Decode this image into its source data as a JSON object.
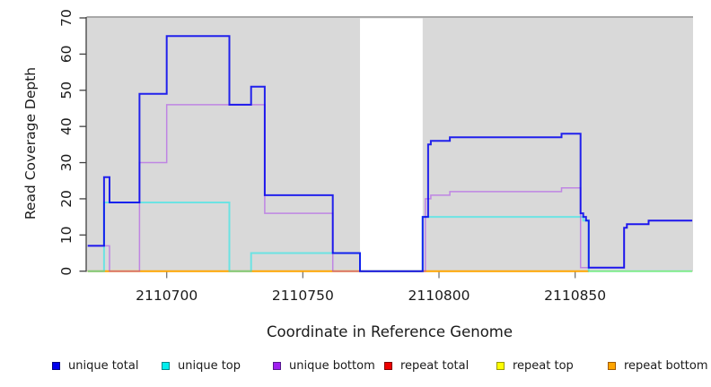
{
  "figure": {
    "background": "#FFFFFF",
    "panel_background": "#D9D9D9",
    "panel_top_border_color": "#A8A8A8",
    "axis_color": "#404040",
    "tick_color": "#757575",
    "text_color": "#1a1a1a",
    "no_data_band_color": "#FFFFFF"
  },
  "chart_data": {
    "type": "line",
    "subtype": "step-coverage-plot",
    "title": "",
    "xlabel": "Coordinate in Reference Genome",
    "ylabel": "Read Coverage Depth",
    "xlim": [
      2110671,
      2110893
    ],
    "ylim": [
      0,
      70
    ],
    "xticks": [
      2110700,
      2110750,
      2110800,
      2110850
    ],
    "yticks": [
      0,
      10,
      20,
      30,
      40,
      50,
      60,
      70
    ],
    "grid": false,
    "legend_position": "bottom",
    "no_data_region": {
      "x_start": 2110771,
      "x_end": 2110794
    },
    "step_format": "each step is [x_start, value]; value holds until next step's x_start; series ends at x_end",
    "series": [
      {
        "name": "repeat total",
        "color": "rgba(238,0,0,0.9)",
        "width": 1.5,
        "steps": [
          [
            2110671,
            0
          ]
        ],
        "x_end": 2110893
      },
      {
        "name": "repeat top",
        "color": "rgba(255,255,0,0.9)",
        "width": 1.5,
        "steps": [
          [
            2110671,
            0
          ]
        ],
        "x_end": 2110893
      },
      {
        "name": "repeat bottom",
        "color": "rgba(255,165,0,1)",
        "width": 2,
        "steps": [
          [
            2110671,
            0
          ]
        ],
        "x_end": 2110855
      },
      {
        "name": "unique top",
        "color": "rgba(0,238,238,0.5)",
        "width": 2,
        "steps": [
          [
            2110671,
            0
          ],
          [
            2110677,
            19
          ],
          [
            2110723,
            0
          ],
          [
            2110731,
            5
          ],
          [
            2110771,
            0
          ],
          [
            2110794,
            15
          ],
          [
            2110853,
            14
          ],
          [
            2110855,
            0
          ]
        ],
        "x_end": 2110893
      },
      {
        "name": "unique bottom",
        "color": "rgba(160,32,240,0.45)",
        "width": 1.5,
        "steps": [
          [
            2110671,
            7
          ],
          [
            2110679,
            0
          ],
          [
            2110690,
            30
          ],
          [
            2110700,
            46
          ],
          [
            2110736,
            16
          ],
          [
            2110761,
            0
          ],
          [
            2110795,
            20
          ],
          [
            2110797,
            21
          ],
          [
            2110804,
            22
          ],
          [
            2110845,
            23
          ],
          [
            2110852,
            1
          ],
          [
            2110868,
            12
          ],
          [
            2110869,
            13
          ],
          [
            2110877,
            14
          ]
        ],
        "x_end": 2110893
      },
      {
        "name": "unique total",
        "color": "rgba(0,0,238,0.85)",
        "width": 2,
        "steps": [
          [
            2110671,
            7
          ],
          [
            2110677,
            26
          ],
          [
            2110679,
            19
          ],
          [
            2110690,
            49
          ],
          [
            2110700,
            65
          ],
          [
            2110723,
            46
          ],
          [
            2110731,
            51
          ],
          [
            2110736,
            21
          ],
          [
            2110761,
            5
          ],
          [
            2110771,
            0
          ],
          [
            2110794,
            15
          ],
          [
            2110796,
            35
          ],
          [
            2110797,
            36
          ],
          [
            2110804,
            37
          ],
          [
            2110845,
            38
          ],
          [
            2110852,
            16
          ],
          [
            2110853,
            15
          ],
          [
            2110854,
            14
          ],
          [
            2110855,
            1
          ],
          [
            2110868,
            12
          ],
          [
            2110869,
            13
          ],
          [
            2110877,
            14
          ]
        ],
        "x_end": 2110893
      }
    ]
  },
  "legend": {
    "items": [
      {
        "label": "unique total",
        "color": "#0000EE",
        "border": "#000080"
      },
      {
        "label": "unique top",
        "color": "#00EEEE",
        "border": "#00868B"
      },
      {
        "label": "unique bottom",
        "color": "#A020F0",
        "border": "#551A8B"
      },
      {
        "label": "repeat total",
        "color": "#EE0000",
        "border": "#800000"
      },
      {
        "label": "repeat top",
        "color": "#FFFF00",
        "border": "#9A9A00"
      },
      {
        "label": "repeat bottom",
        "color": "#FFA500",
        "border": "#A05A00"
      }
    ]
  }
}
